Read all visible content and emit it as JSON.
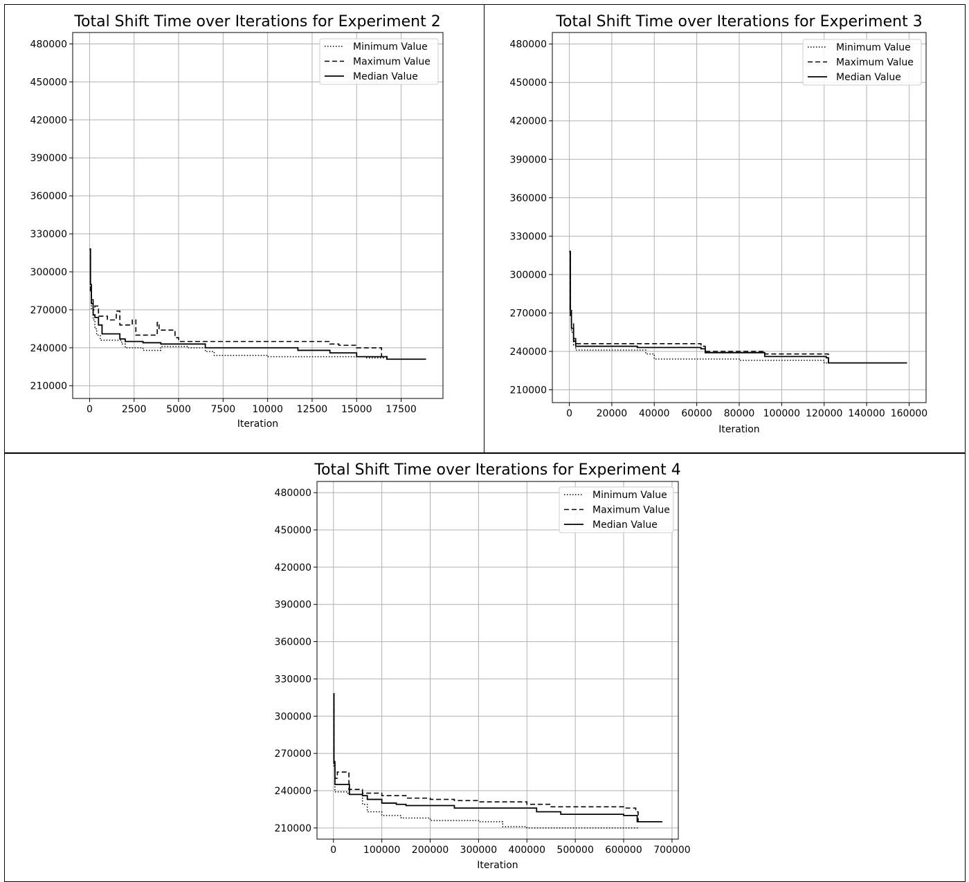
{
  "chart_data": [
    {
      "type": "line",
      "title": "Total Shift Time over Iterations for Experiment 2",
      "xlabel": "Iteration",
      "ylabel": "",
      "xlim": [
        -950,
        19850
      ],
      "ylim": [
        200000,
        489000
      ],
      "xticks": [
        0,
        2500,
        5000,
        7500,
        10000,
        12500,
        15000,
        17500
      ],
      "xtick_labels": [
        "0",
        "2500",
        "5000",
        "7500",
        "10000",
        "12500",
        "15000",
        "17500"
      ],
      "yticks": [
        210000,
        240000,
        270000,
        300000,
        330000,
        360000,
        390000,
        420000,
        450000,
        480000
      ],
      "ytick_labels": [
        "210000",
        "240000",
        "270000",
        "300000",
        "330000",
        "360000",
        "390000",
        "420000",
        "450000",
        "480000"
      ],
      "grid": true,
      "legend_position": "top-right",
      "series": [
        {
          "name": "Minimum Value",
          "style": "dotted",
          "x": [
            0,
            50,
            100,
            200,
            300,
            400,
            600,
            1000,
            1800,
            2000,
            3000,
            3900,
            4000,
            5500,
            6500,
            7000,
            10000,
            12000,
            15500,
            16500
          ],
          "y": [
            318000,
            290000,
            270000,
            262000,
            255000,
            250000,
            246000,
            246000,
            243000,
            240000,
            238000,
            238000,
            241000,
            240000,
            237000,
            234000,
            233000,
            233000,
            232000,
            231000
          ]
        },
        {
          "name": "Maximum Value",
          "style": "dashed",
          "x": [
            0,
            50,
            100,
            200,
            300,
            500,
            700,
            1000,
            1500,
            1700,
            2000,
            2400,
            2600,
            3800,
            3900,
            4300,
            4800,
            5000,
            7000,
            11700,
            13500,
            14000,
            15000,
            16400,
            16700
          ],
          "y": [
            318000,
            285000,
            278000,
            270000,
            273000,
            265000,
            265000,
            262000,
            269000,
            258000,
            258000,
            262000,
            250000,
            260000,
            254000,
            254000,
            248000,
            245000,
            245000,
            245000,
            243000,
            242000,
            240000,
            233000,
            231000
          ]
        },
        {
          "name": "Median Value",
          "style": "solid",
          "x": [
            0,
            50,
            100,
            200,
            300,
            500,
            700,
            1000,
            1700,
            2000,
            3000,
            3900,
            4000,
            6000,
            6500,
            8000,
            11700,
            13500,
            15000,
            16700,
            18900
          ],
          "y": [
            318000,
            290000,
            275000,
            266000,
            264000,
            258000,
            251000,
            251000,
            247000,
            245000,
            244000,
            244000,
            243000,
            243000,
            240000,
            240000,
            238000,
            236000,
            233000,
            231000,
            231000
          ]
        }
      ]
    },
    {
      "type": "line",
      "title": "Total Shift Time over Iterations for Experiment 3",
      "xlabel": "Iteration",
      "ylabel": "",
      "xlim": [
        -8000,
        168000
      ],
      "ylim": [
        200000,
        489000
      ],
      "xticks": [
        0,
        20000,
        40000,
        60000,
        80000,
        100000,
        120000,
        140000,
        160000
      ],
      "xtick_labels": [
        "0",
        "20000",
        "40000",
        "60000",
        "80000",
        "100000",
        "120000",
        "140000",
        "160000"
      ],
      "yticks": [
        210000,
        240000,
        270000,
        300000,
        330000,
        360000,
        390000,
        420000,
        450000,
        480000
      ],
      "ytick_labels": [
        "210000",
        "240000",
        "270000",
        "300000",
        "330000",
        "360000",
        "390000",
        "420000",
        "450000",
        "480000"
      ],
      "grid": true,
      "legend_position": "top-right",
      "series": [
        {
          "name": "Minimum Value",
          "style": "dotted",
          "x": [
            0,
            500,
            1000,
            2000,
            3000,
            32000,
            36000,
            40000,
            80000,
            120000,
            122000,
            159000
          ],
          "y": [
            318000,
            270000,
            255000,
            245000,
            241000,
            241000,
            238000,
            234000,
            233000,
            231000,
            231000,
            231000
          ]
        },
        {
          "name": "Maximum Value",
          "style": "dashed",
          "x": [
            0,
            500,
            1000,
            2000,
            3000,
            32000,
            62000,
            64000,
            92000,
            121000,
            122000
          ],
          "y": [
            318000,
            268000,
            262000,
            250000,
            246000,
            246000,
            244000,
            240000,
            238000,
            238000,
            231000
          ]
        },
        {
          "name": "Median Value",
          "style": "solid",
          "x": [
            0,
            500,
            1000,
            2000,
            3000,
            32000,
            62000,
            64000,
            92000,
            121000,
            122000,
            159000
          ],
          "y": [
            318000,
            272000,
            258000,
            248000,
            244000,
            243000,
            242000,
            239000,
            236000,
            235000,
            231000,
            231000
          ]
        }
      ]
    },
    {
      "type": "line",
      "title": "Total Shift Time over Iterations for Experiment 4",
      "xlabel": "Iteration",
      "ylabel": "",
      "xlim": [
        -34000,
        713000
      ],
      "ylim": [
        201000,
        489000
      ],
      "xticks": [
        0,
        100000,
        200000,
        300000,
        400000,
        500000,
        600000,
        700000
      ],
      "xtick_labels": [
        "0",
        "100000",
        "200000",
        "300000",
        "400000",
        "500000",
        "600000",
        "700000"
      ],
      "yticks": [
        210000,
        240000,
        270000,
        300000,
        330000,
        360000,
        390000,
        420000,
        450000,
        480000
      ],
      "ytick_labels": [
        "210000",
        "240000",
        "270000",
        "300000",
        "330000",
        "360000",
        "390000",
        "420000",
        "450000",
        "480000"
      ],
      "grid": true,
      "legend_position": "top-right",
      "series": [
        {
          "name": "Minimum Value",
          "style": "dotted",
          "x": [
            0,
            1000,
            3000,
            30000,
            60000,
            70000,
            100000,
            140000,
            200000,
            300000,
            350000,
            400000,
            630000
          ],
          "y": [
            318000,
            260000,
            239000,
            237000,
            229000,
            223000,
            220000,
            218000,
            216000,
            215000,
            211000,
            210000,
            210000
          ]
        },
        {
          "name": "Maximum Value",
          "style": "dashed",
          "x": [
            0,
            1000,
            3000,
            8000,
            30000,
            32000,
            60000,
            100000,
            150000,
            200000,
            250000,
            300000,
            400000,
            450000,
            600000,
            625000,
            630000
          ],
          "y": [
            318000,
            265000,
            250000,
            255000,
            255000,
            241000,
            238000,
            236000,
            234000,
            233000,
            232000,
            231000,
            229000,
            227000,
            226000,
            223000,
            215000
          ]
        },
        {
          "name": "Median Value",
          "style": "solid",
          "x": [
            0,
            1000,
            3000,
            30000,
            33000,
            60000,
            70000,
            100000,
            130000,
            150000,
            250000,
            350000,
            420000,
            470000,
            600000,
            628000,
            680000
          ],
          "y": [
            318000,
            262000,
            245000,
            245000,
            237000,
            236000,
            233000,
            230000,
            229000,
            228000,
            226000,
            226000,
            223000,
            221000,
            220000,
            215000,
            215000
          ]
        }
      ]
    }
  ],
  "legend": {
    "entries": [
      "Minimum Value",
      "Maximum Value",
      "Median Value"
    ]
  }
}
